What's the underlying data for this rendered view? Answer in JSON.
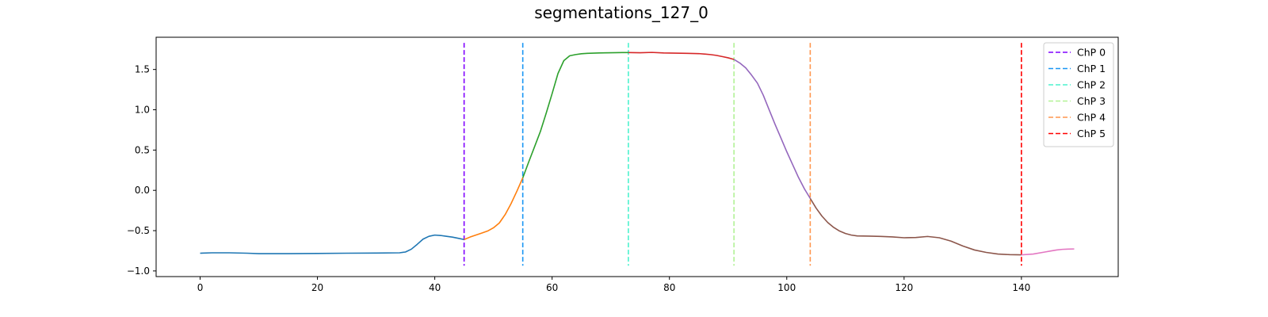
{
  "chart_data": {
    "type": "line",
    "title": "segmentations_127_0",
    "xlabel": "",
    "ylabel": "",
    "xlim": [
      -7.5,
      156.5
    ],
    "ylim": [
      -1.07,
      1.9
    ],
    "x_ticks": [
      0,
      20,
      40,
      60,
      80,
      100,
      120,
      140
    ],
    "y_ticks": [
      -1.0,
      -0.5,
      0.0,
      0.5,
      1.0,
      1.5
    ],
    "y_tick_labels": [
      "−1.0",
      "−0.5",
      "0.0",
      "0.5",
      "1.0",
      "1.5"
    ],
    "grid": false,
    "legend_position": "top-right",
    "segments": [
      {
        "color": "#1f77b4",
        "x": [
          0,
          2,
          5,
          8,
          10,
          15,
          20,
          25,
          30,
          34,
          35,
          36,
          37,
          38,
          39,
          40,
          41,
          42,
          43,
          44,
          45
        ],
        "y": [
          -0.78,
          -0.775,
          -0.775,
          -0.78,
          -0.785,
          -0.785,
          -0.783,
          -0.78,
          -0.778,
          -0.775,
          -0.765,
          -0.73,
          -0.67,
          -0.605,
          -0.57,
          -0.555,
          -0.56,
          -0.57,
          -0.58,
          -0.595,
          -0.61
        ]
      },
      {
        "color": "#ff7f0e",
        "x": [
          45,
          46,
          47,
          48,
          49,
          50,
          51,
          52,
          53,
          54,
          55
        ],
        "y": [
          -0.61,
          -0.58,
          -0.555,
          -0.53,
          -0.505,
          -0.465,
          -0.405,
          -0.3,
          -0.165,
          -0.01,
          0.155
        ]
      },
      {
        "color": "#2ca02c",
        "x": [
          55,
          56,
          57,
          58,
          59,
          60,
          61,
          62,
          63,
          64,
          65,
          66,
          68,
          70,
          72,
          73
        ],
        "y": [
          0.155,
          0.35,
          0.54,
          0.73,
          0.96,
          1.2,
          1.45,
          1.61,
          1.67,
          1.685,
          1.695,
          1.7,
          1.705,
          1.708,
          1.71,
          1.71
        ]
      },
      {
        "color": "#d62728",
        "x": [
          73,
          75,
          77,
          79,
          81,
          83,
          85,
          87,
          88,
          89,
          90,
          91
        ],
        "y": [
          1.71,
          1.708,
          1.712,
          1.705,
          1.703,
          1.7,
          1.697,
          1.685,
          1.675,
          1.66,
          1.645,
          1.625
        ]
      },
      {
        "color": "#9467bd",
        "x": [
          91,
          92,
          93,
          94,
          95,
          96,
          97,
          98,
          99,
          100,
          101,
          102,
          103,
          104
        ],
        "y": [
          1.625,
          1.58,
          1.52,
          1.43,
          1.33,
          1.18,
          1.0,
          0.82,
          0.65,
          0.48,
          0.32,
          0.16,
          0.02,
          -0.1
        ]
      },
      {
        "color": "#8c564b",
        "x": [
          104,
          105,
          106,
          107,
          108,
          109,
          110,
          111,
          112,
          114,
          116,
          118,
          120,
          122,
          124,
          126,
          128,
          130,
          132,
          134,
          136,
          138,
          140
        ],
        "y": [
          -0.1,
          -0.22,
          -0.32,
          -0.4,
          -0.46,
          -0.505,
          -0.535,
          -0.555,
          -0.565,
          -0.568,
          -0.572,
          -0.578,
          -0.588,
          -0.585,
          -0.572,
          -0.588,
          -0.63,
          -0.69,
          -0.74,
          -0.77,
          -0.79,
          -0.798,
          -0.8
        ]
      },
      {
        "color": "#e377c2",
        "x": [
          140,
          142,
          144,
          145,
          146,
          147,
          148,
          149
        ],
        "y": [
          -0.8,
          -0.79,
          -0.765,
          -0.752,
          -0.74,
          -0.732,
          -0.729,
          -0.727
        ]
      }
    ],
    "changepoints": [
      {
        "name": "ChP 0",
        "x": 45,
        "color": "#8000ff"
      },
      {
        "name": "ChP 1",
        "x": 55,
        "color": "#1996f3"
      },
      {
        "name": "ChP 2",
        "x": 73,
        "color": "#4cf2ce"
      },
      {
        "name": "ChP 3",
        "x": 91,
        "color": "#b2f296"
      },
      {
        "name": "ChP 4",
        "x": 104,
        "color": "#ff964f"
      },
      {
        "name": "ChP 5",
        "x": 140,
        "color": "#ff0000"
      }
    ]
  }
}
